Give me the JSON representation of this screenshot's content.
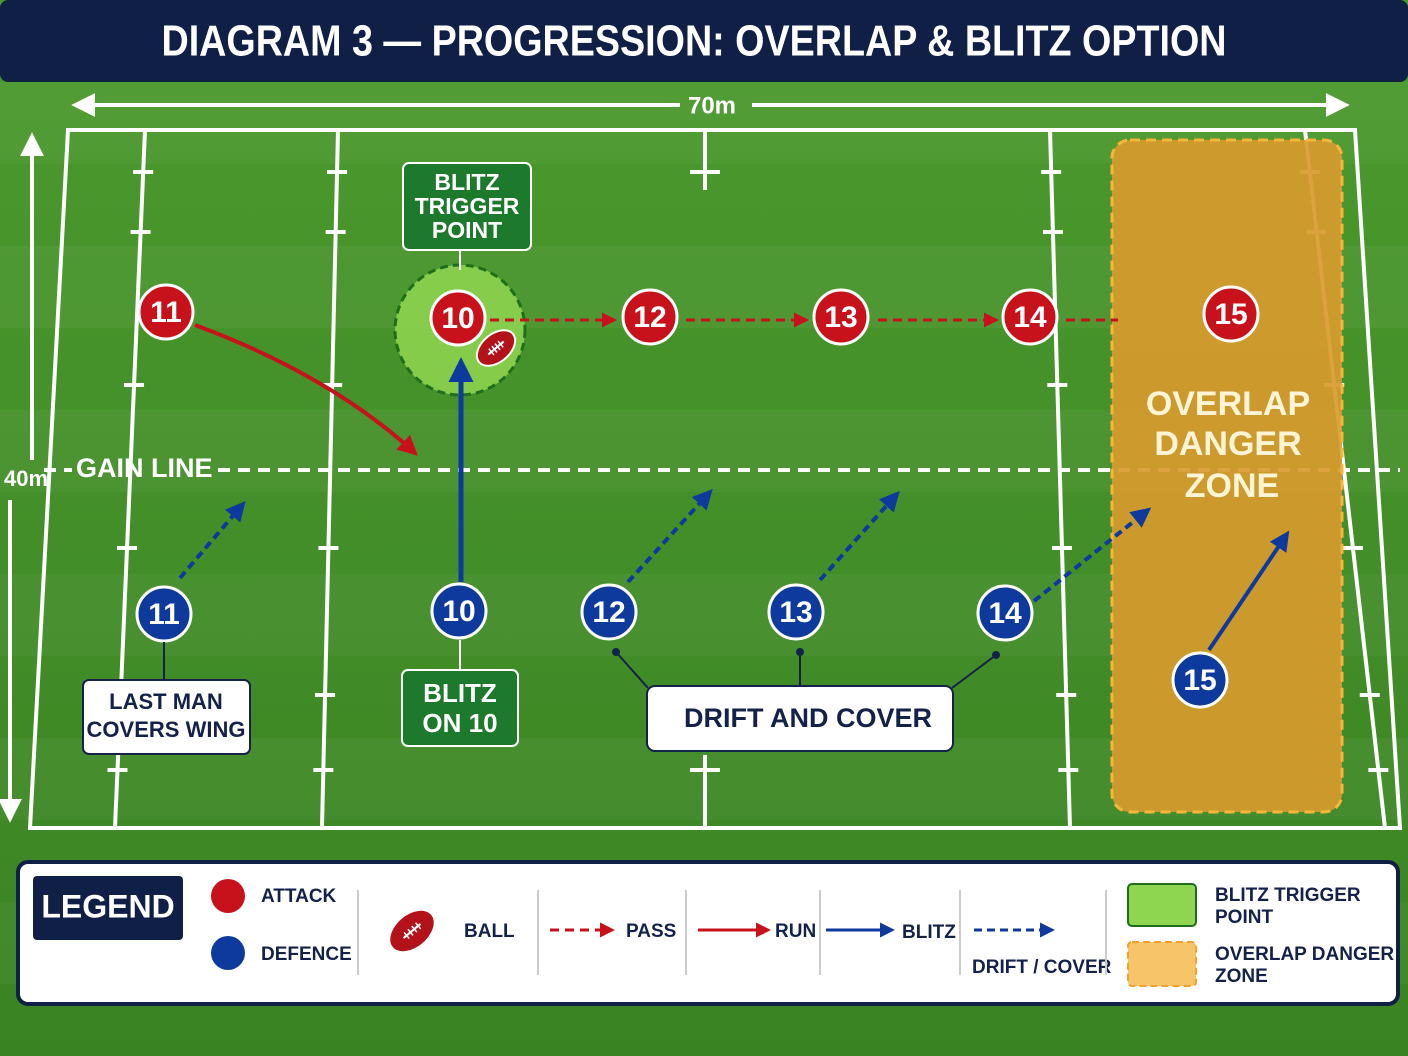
{
  "title": "DIAGRAM 3 — PROGRESSION: OVERLAP & BLITZ OPTION",
  "dimensions": {
    "width": "70m",
    "height": "40m"
  },
  "gain_line": "GAIN LINE",
  "attack": [
    "11",
    "10",
    "12",
    "13",
    "14",
    "15"
  ],
  "defence": [
    "11",
    "10",
    "12",
    "13",
    "14",
    "15"
  ],
  "callouts": {
    "blitz_trigger": [
      "BLITZ",
      "TRIGGER",
      "POINT"
    ],
    "blitz_on_10": [
      "BLITZ",
      "ON 10"
    ],
    "last_man": [
      "LAST MAN",
      "COVERS WING"
    ],
    "drift": "DRIFT AND COVER",
    "overlap_zone": [
      "OVERLAP",
      "DANGER",
      "ZONE"
    ]
  },
  "legend": {
    "title": "LEGEND",
    "attack": "ATTACK",
    "defence": "DEFENCE",
    "ball": "BALL",
    "pass": "PASS",
    "run": "RUN",
    "blitz": "BLITZ",
    "drift_cover": "DRIFT / COVER",
    "blitz_trigger": [
      "BLITZ TRIGGER",
      "POINT"
    ],
    "overlap_zone": [
      "OVERLAP DANGER",
      "ZONE"
    ]
  }
}
